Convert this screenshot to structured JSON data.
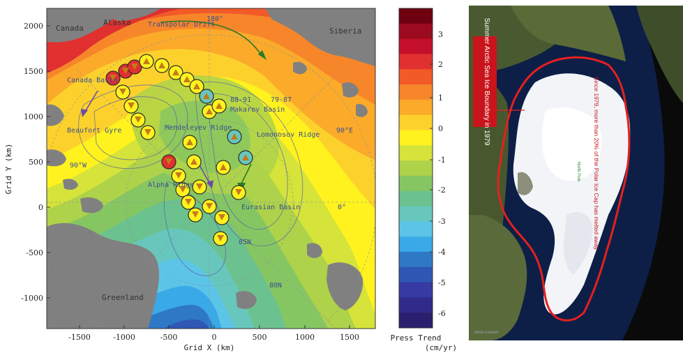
{
  "map": {
    "x_axis": {
      "title": "Grid X (km)",
      "ticks": [
        "-1500",
        "-1000",
        "-500",
        "0",
        "500",
        "1000",
        "1500"
      ]
    },
    "y_axis": {
      "title": "Grid Y (km)",
      "ticks": [
        "2000",
        "1500",
        "1000",
        "500",
        "0",
        "-500",
        "-1000"
      ]
    },
    "places": {
      "canada": "Canada",
      "alaska": "Alaska",
      "siberia": "Siberia",
      "greenland": "Greenland"
    },
    "features": {
      "transpolar": "Transpolar Drift",
      "canada_basin": "Canada Basin",
      "beaufort_gyre": "Beaufort Gyre",
      "makarov_basin": "Makarov Basin",
      "lomonosov_ridge": "Lomonosov Ridge",
      "mendeleyev_ridge": "Mendeleyev Ridge",
      "alpha_ridge": "Alpha Ridge",
      "eurasian_basin": "Eurasian Basin",
      "year_range_a": "88-91",
      "year_range_b": "79-87",
      "deg_90e": "90°E",
      "deg_90w": "90°W",
      "deg_180": "180°",
      "lat_80n": "80N",
      "lat_85n": "85N",
      "deg_0": "0°"
    }
  },
  "colorbar": {
    "title": "Press Trend",
    "units": "(cm/yr)",
    "ticks": [
      "3",
      "2",
      "1",
      "0",
      "-1",
      "-2",
      "-3",
      "-4",
      "-5",
      "-6"
    ],
    "colors": [
      "#6e0010",
      "#9b0a1e",
      "#c4102a",
      "#e03030",
      "#f25a28",
      "#f7862a",
      "#fbaa2a",
      "#fdd12b",
      "#fff21e",
      "#d5e33a",
      "#aed24a",
      "#86c662",
      "#6cc28e",
      "#67c7bd",
      "#5cc5e7",
      "#3aa9e8",
      "#2e78c6",
      "#2f57b3",
      "#363aa3",
      "#302a8a",
      "#291f6e"
    ],
    "colors_note": "bands from top (+3.5) to bottom (-6.5)"
  },
  "satellite": {
    "label_box": "Summer Arctic Sea Ice Boundary in 1979",
    "caption": "Since 1979, more than 20% of the Polar Ice Cap has melted away",
    "pole_label": "North Pole",
    "credit": "NASA Goddard"
  }
}
